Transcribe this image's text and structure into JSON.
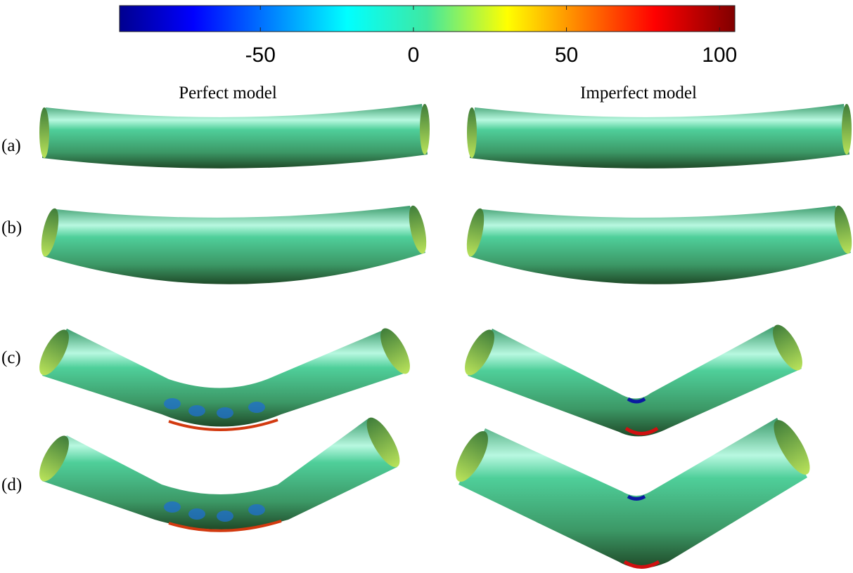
{
  "colorbar": {
    "lim": [
      -96,
      105
    ],
    "ticks": [
      -50,
      0,
      50,
      100
    ]
  },
  "columns": [
    "Perfect model",
    "Imperfect model"
  ],
  "rows": [
    "(a)",
    "(b)",
    "(c)",
    "(d)"
  ]
}
